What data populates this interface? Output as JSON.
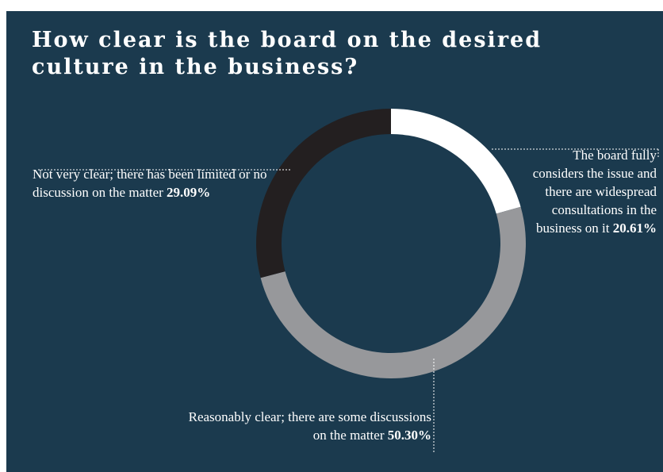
{
  "colors": {
    "background": "#1b3a4e",
    "segment_fully": "#ffffff",
    "segment_reasonably": "#97989b",
    "segment_not_very": "#231f20",
    "leader": "#ffffff"
  },
  "chart_data": {
    "type": "pie",
    "style": "donut",
    "title": "How clear is the board on the desired culture in the business?",
    "slices": [
      {
        "label": "The board fully considers the issue and there are widespread consultations in the business on it",
        "value": 20.61,
        "value_label": "20.61%",
        "color": "#ffffff"
      },
      {
        "label": "Reasonably clear; there are some discussions on the matter",
        "value": 50.3,
        "value_label": "50.30%",
        "color": "#97989b"
      },
      {
        "label": "Not very clear; there has been limited or no discussion on the matter",
        "value": 29.09,
        "value_label": "29.09%",
        "color": "#231f20"
      }
    ],
    "start": "top",
    "direction": "clockwise"
  }
}
